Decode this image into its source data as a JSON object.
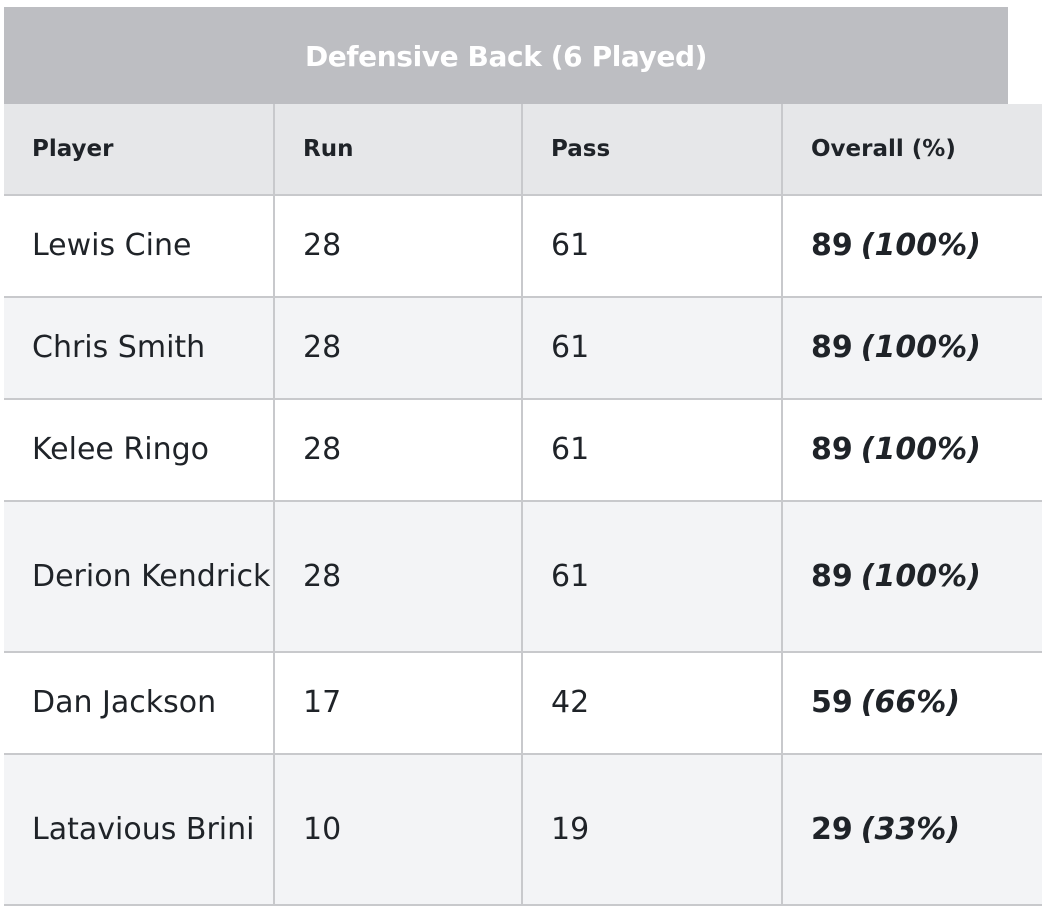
{
  "banner": {
    "title": "Defensive Back (6 Played)"
  },
  "table": {
    "headers": [
      "Player",
      "Run",
      "Pass",
      "Overall (%)"
    ],
    "rows": [
      {
        "player": "Lewis Cine",
        "run": "28",
        "pass": "61",
        "overall": "89",
        "overall_pct": "(100%)"
      },
      {
        "player": "Chris Smith",
        "run": "28",
        "pass": "61",
        "overall": "89",
        "overall_pct": "(100%)"
      },
      {
        "player": "Kelee Ringo",
        "run": "28",
        "pass": "61",
        "overall": "89",
        "overall_pct": "(100%)"
      },
      {
        "player": "Derion Kendrick",
        "run": "28",
        "pass": "61",
        "overall": "89",
        "overall_pct": "(100%)"
      },
      {
        "player": "Dan Jackson",
        "run": "17",
        "pass": "42",
        "overall": "59",
        "overall_pct": "(66%)"
      },
      {
        "player": "Latavious Brini",
        "run": "10",
        "pass": "19",
        "overall": "29",
        "overall_pct": "(33%)"
      }
    ]
  },
  "colors": {
    "banner_bg": "#bdbec2",
    "header_bg": "#e6e7e9",
    "row_alt_bg": "#f3f4f6",
    "border": "#c8c9cc",
    "text": "#1f2328"
  }
}
